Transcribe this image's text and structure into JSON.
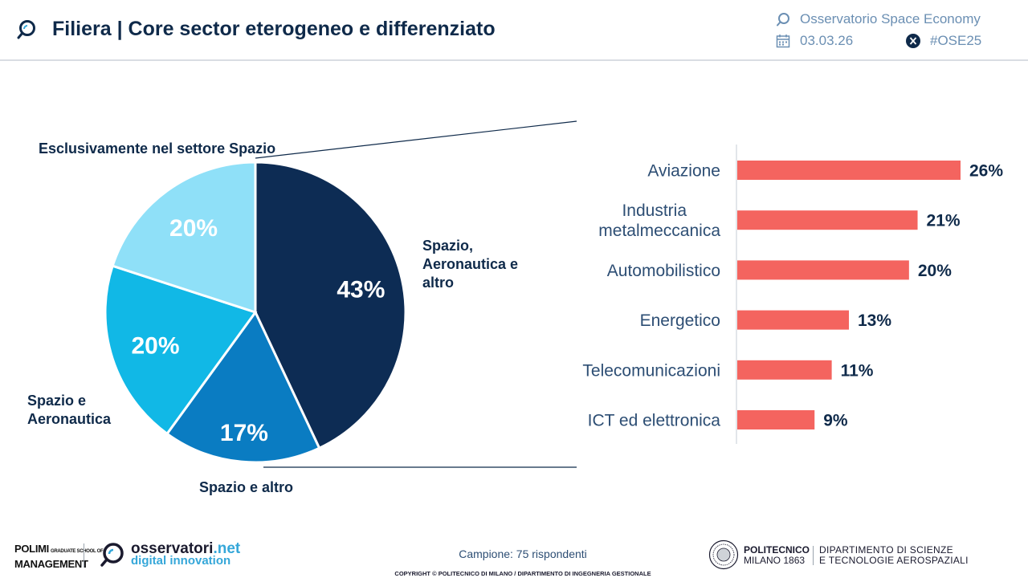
{
  "header": {
    "title": "Filiera | Core sector eterogeneo e differenziato",
    "organization": "Osservatorio Space Economy",
    "date": "03.03.26",
    "hashtag": "#OSE25",
    "icons": {
      "title": "magnifier-logo-icon",
      "organization": "magnifier-logo-icon",
      "date": "calendar-icon",
      "hashtag": "x-logo-icon"
    }
  },
  "chart_data": [
    {
      "type": "pie",
      "slices": [
        {
          "label": "Spazio, Aeronautica e altro",
          "value": 43,
          "display": "43%",
          "color": "#0d2c54"
        },
        {
          "label": "Spazio e altro",
          "value": 17,
          "display": "17%",
          "color": "#0a7cc2"
        },
        {
          "label": "Spazio e Aeronautica",
          "value": 20,
          "display": "20%",
          "color": "#11b8e6"
        },
        {
          "label": "Esclusivamente nel settore Spazio",
          "value": 20,
          "display": "20%",
          "color": "#8fe0f8"
        }
      ],
      "start_angle_deg": 0,
      "direction": "clockwise"
    },
    {
      "type": "bar",
      "orientation": "horizontal",
      "categories": [
        "Aviazione",
        "Industria metalmeccanica",
        "Automobilistico",
        "Energetico",
        "Telecomunicazioni",
        "ICT ed elettronica"
      ],
      "values": [
        26,
        21,
        20,
        13,
        11,
        9
      ],
      "value_labels": [
        "26%",
        "21%",
        "20%",
        "13%",
        "11%",
        "9%"
      ],
      "xlim": [
        0,
        26
      ],
      "bar_color": "#f4645f"
    }
  ],
  "footer": {
    "polimi_line1": "POLIMI",
    "polimi_small": "GRADUATE SCHOOL OF",
    "polimi_line2": "MANAGEMENT",
    "obs_name": "osservatori",
    "obs_domain": ".net",
    "obs_tagline": "digital innovation",
    "sample": "Campione: 75 rispondenti",
    "copyright": "COPYRIGHT © POLITECNICO DI MILANO / DIPARTIMENTO DI INGEGNERIA GESTIONALE",
    "poli_name": "POLITECNICO",
    "poli_city": "MILANO 1863",
    "dept_line1": "DIPARTIMENTO DI SCIENZE",
    "dept_line2": "E TECNOLOGIE AEROSPAZIALI"
  }
}
